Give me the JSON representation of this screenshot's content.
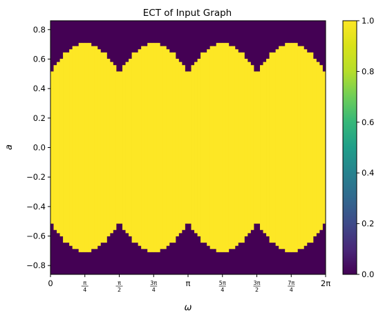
{
  "chart_data": {
    "type": "heatmap",
    "title": "ECT of Input Graph",
    "xlabel": "ω",
    "ylabel": "a",
    "xlim": [
      0,
      6.283185307179586
    ],
    "ylim": [
      -0.86,
      0.86
    ],
    "grid": false,
    "x_ticks": [
      {
        "value": 0,
        "num": "",
        "den": "",
        "label": "0"
      },
      {
        "value": 0.7853981633974483,
        "num": "π",
        "den": "4",
        "label": ""
      },
      {
        "value": 1.5707963267948966,
        "num": "π",
        "den": "2",
        "label": ""
      },
      {
        "value": 2.356194490192345,
        "num": "3π",
        "den": "4",
        "label": ""
      },
      {
        "value": 3.141592653589793,
        "num": "",
        "den": "",
        "label": "π"
      },
      {
        "value": 3.9269908169872414,
        "num": "5π",
        "den": "4",
        "label": ""
      },
      {
        "value": 4.71238898038469,
        "num": "3π",
        "den": "2",
        "label": ""
      },
      {
        "value": 5.497787143782138,
        "num": "7π",
        "den": "4",
        "label": ""
      },
      {
        "value": 6.283185307179586,
        "num": "",
        "den": "",
        "label": "2π"
      }
    ],
    "y_ticks": [
      {
        "value": 0.8,
        "label": "0.8"
      },
      {
        "value": 0.6,
        "label": "0.6"
      },
      {
        "value": 0.4,
        "label": "0.4"
      },
      {
        "value": 0.2,
        "label": "0.2"
      },
      {
        "value": 0.0,
        "label": "0.0"
      },
      {
        "value": -0.2,
        "label": "−0.2"
      },
      {
        "value": -0.4,
        "label": "−0.4"
      },
      {
        "value": -0.6,
        "label": "−0.6"
      },
      {
        "value": -0.8,
        "label": "−0.8"
      }
    ],
    "grid_size": {
      "columns": 88,
      "rows": 80
    },
    "value_range": [
      0,
      1
    ],
    "description_of_values": "Cell value is 1 where |a| < max over the four shape's projections (lobes peaking at 0.7 at ω = π/4, 3π/4, 5π/4, 7π/4 and dipping to 0.5 at ω = 0, π/2, π, 3π/2, 2π), otherwise 0.",
    "lobe_centers": [
      0.7853981633974483,
      2.356194490192345,
      3.9269908169872414,
      5.497787143782138
    ],
    "lobe_peak": 0.707,
    "lobe_min": 0.5,
    "colormap": "viridis",
    "colors": {
      "low": "#440154",
      "high": "#fde725"
    },
    "colorbar": {
      "ticks": [
        {
          "value": 0.0,
          "label": "0.0"
        },
        {
          "value": 0.2,
          "label": "0.2"
        },
        {
          "value": 0.4,
          "label": "0.4"
        },
        {
          "value": 0.6,
          "label": "0.6"
        },
        {
          "value": 0.8,
          "label": "0.8"
        },
        {
          "value": 1.0,
          "label": "1.0"
        }
      ]
    }
  }
}
